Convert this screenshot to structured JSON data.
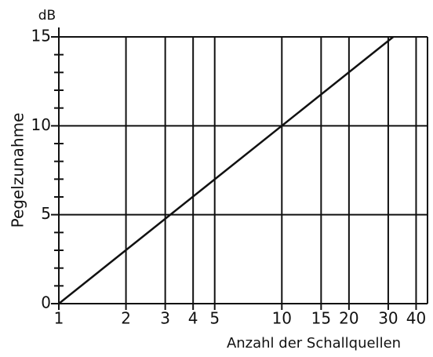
{
  "chart_data": {
    "type": "line",
    "x_scale": "log",
    "x": [
      1,
      31.6
    ],
    "series": [
      {
        "name": null,
        "color": "#111111",
        "values": [
          0,
          15
        ]
      }
    ],
    "xlim": [
      1,
      45
    ],
    "xticks": [
      1,
      2,
      3,
      4,
      5,
      10,
      15,
      20,
      30,
      40
    ],
    "ylim": [
      0,
      15
    ],
    "yticks": [
      0,
      5,
      10,
      15
    ],
    "yminorticks": [
      1,
      2,
      3,
      4,
      6,
      7,
      8,
      9,
      11,
      12,
      13,
      14
    ],
    "grid": true,
    "y_unit": "dB",
    "ylabel": "Pegelzunahme",
    "xlabel": "Anzahl der Schallquellen"
  }
}
